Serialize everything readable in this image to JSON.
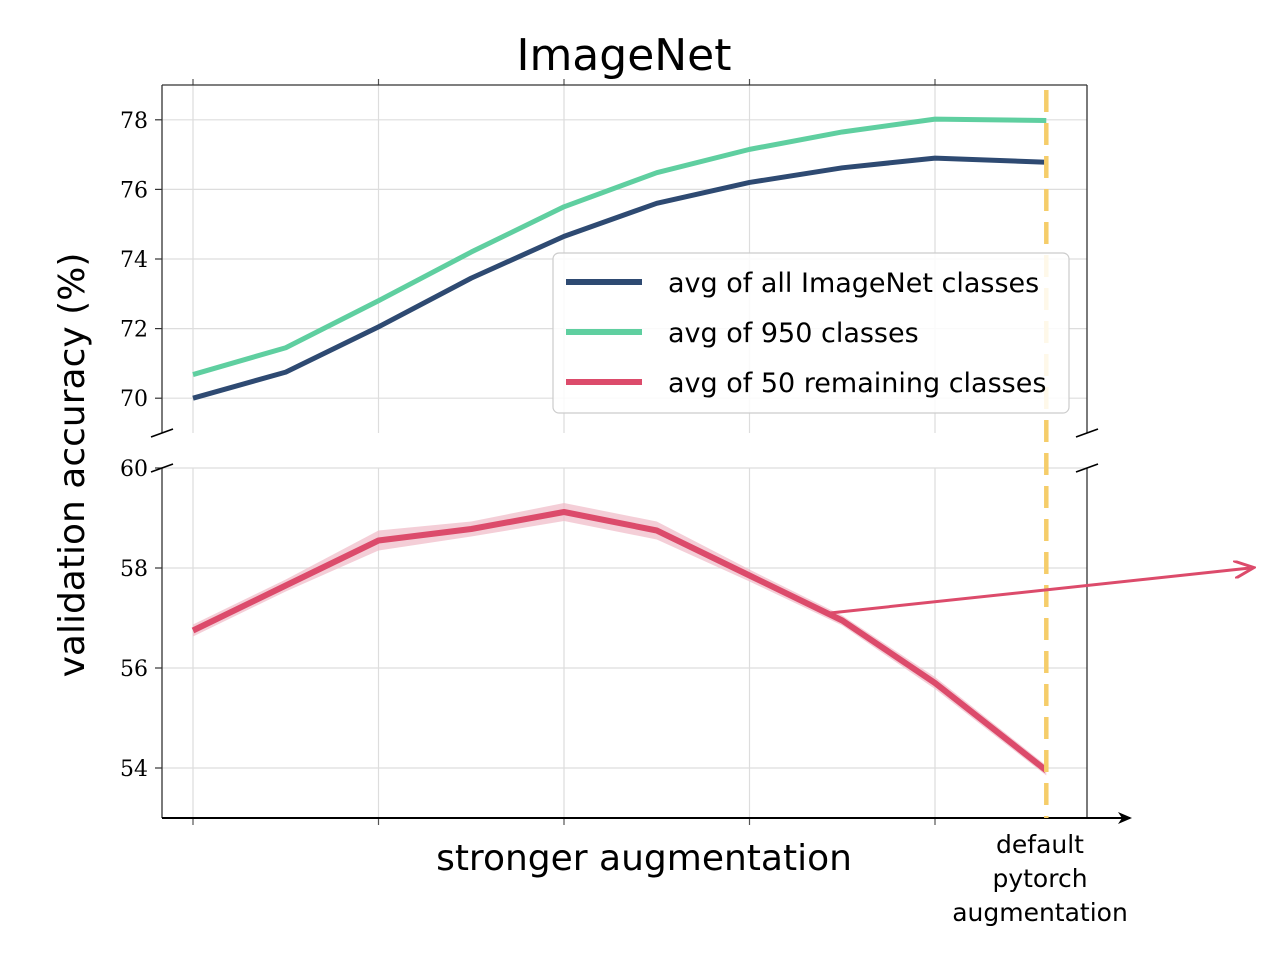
{
  "chart_data": {
    "type": "line",
    "title": "ImageNet",
    "xlabel": "stronger augmentation",
    "ylabel": "validation accuracy (%)",
    "x_annotation": [
      "default",
      "pytorch",
      "augmentation"
    ],
    "x": [
      0,
      0.5,
      1,
      1.5,
      2,
      2.5,
      3,
      3.5,
      4,
      4.6
    ],
    "top_panel": {
      "ylim": [
        69.0,
        79.0
      ],
      "yticks": [
        "70",
        "72",
        "74",
        "76",
        "78"
      ],
      "series": [
        {
          "name": "avg of all ImageNet classes",
          "color": "#2e4a72",
          "values": [
            70.0,
            70.75,
            72.05,
            73.45,
            74.65,
            75.6,
            76.2,
            76.62,
            76.9,
            76.78
          ]
        },
        {
          "name": "avg of 950 classes",
          "color": "#5fcfa0",
          "values": [
            70.68,
            71.45,
            72.8,
            74.2,
            75.5,
            76.48,
            77.15,
            77.65,
            78.02,
            77.98
          ]
        }
      ]
    },
    "bottom_panel": {
      "ylim": [
        53.0,
        60.0
      ],
      "yticks": [
        "54",
        "56",
        "58",
        "60"
      ],
      "series": [
        {
          "name": "avg of 50 remaining classes",
          "color": "#dc4b6b",
          "band_color": "#efb9c6",
          "values": [
            56.75,
            57.65,
            58.55,
            58.78,
            59.12,
            58.75,
            57.85,
            56.95,
            55.7,
            53.95
          ],
          "band": [
            0.12,
            0.12,
            0.2,
            0.15,
            0.18,
            0.18,
            0.12,
            0.1,
            0.12,
            0.1
          ]
        }
      ]
    },
    "default_line_x": 4.6,
    "default_line_color": "#f5cd6a",
    "grid": true,
    "legend_position": "center-right"
  }
}
